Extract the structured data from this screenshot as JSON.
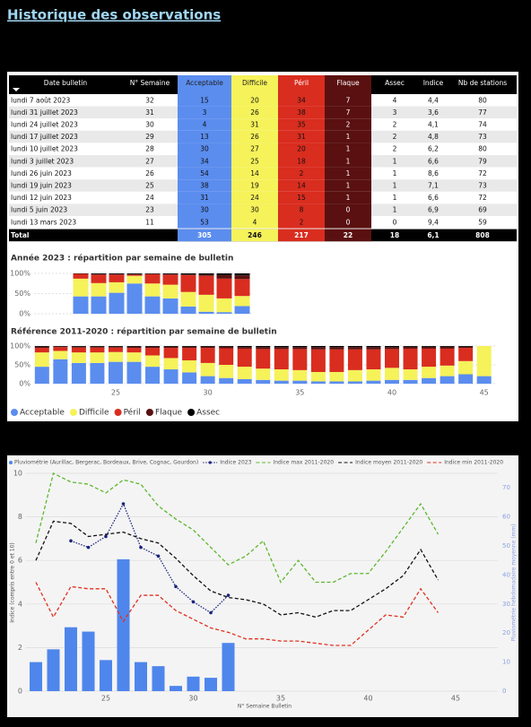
{
  "title": "Historique des observations",
  "table": {
    "columns": [
      "Date bulletin",
      "N° Semaine",
      "Acceptable",
      "Difficile",
      "Péril",
      "Flaque",
      "Assec",
      "Indice",
      "Nb de stations"
    ],
    "rows": [
      [
        "lundi 7 août 2023",
        "32",
        "15",
        "20",
        "34",
        "7",
        "4",
        "4,4",
        "80"
      ],
      [
        "lundi 31 juillet 2023",
        "31",
        "3",
        "26",
        "38",
        "7",
        "3",
        "3,6",
        "77"
      ],
      [
        "lundi 24 juillet 2023",
        "30",
        "4",
        "31",
        "35",
        "2",
        "2",
        "4,1",
        "74"
      ],
      [
        "lundi 17 juillet 2023",
        "29",
        "13",
        "26",
        "31",
        "1",
        "2",
        "4,8",
        "73"
      ],
      [
        "lundi 10 juillet 2023",
        "28",
        "30",
        "27",
        "20",
        "1",
        "2",
        "6,2",
        "80"
      ],
      [
        "lundi 3 juillet 2023",
        "27",
        "34",
        "25",
        "18",
        "1",
        "1",
        "6,6",
        "79"
      ],
      [
        "lundi 26 juin 2023",
        "26",
        "54",
        "14",
        "2",
        "1",
        "1",
        "8,6",
        "72"
      ],
      [
        "lundi 19 juin 2023",
        "25",
        "38",
        "19",
        "14",
        "1",
        "1",
        "7,1",
        "73"
      ],
      [
        "lundi 12 juin 2023",
        "24",
        "31",
        "24",
        "15",
        "1",
        "1",
        "6,6",
        "72"
      ],
      [
        "lundi 5 juin 2023",
        "23",
        "30",
        "30",
        "8",
        "0",
        "1",
        "6,9",
        "69"
      ],
      [
        "lundi 13 mars 2023",
        "11",
        "53",
        "4",
        "2",
        "0",
        "0",
        "9,4",
        "59"
      ]
    ],
    "total": [
      "Total",
      "305",
      "246",
      "217",
      "22",
      "18",
      "6,1",
      "808"
    ]
  },
  "chart_data": [
    {
      "type": "bar",
      "stacked": true,
      "title": "Année 2023 : répartition par semaine de bulletin",
      "categories": [
        null,
        null,
        null,
        null,
        null,
        null,
        null,
        null,
        null,
        null
      ],
      "series": [
        {
          "color": "#5b8def",
          "values": [
            43,
            43,
            52,
            75,
            43,
            38,
            18,
            5,
            4,
            19
          ]
        },
        {
          "color": "#f5f25a",
          "values": [
            44,
            33,
            26,
            19,
            32,
            34,
            36,
            42,
            34,
            25
          ]
        },
        {
          "color": "#d92d1f",
          "values": [
            12,
            21,
            19,
            3,
            23,
            25,
            42,
            47,
            49,
            42
          ]
        },
        {
          "color": "#5a1010",
          "values": [
            0,
            1,
            1,
            1,
            1,
            1,
            1,
            3,
            9,
            9
          ]
        },
        {
          "color": "#000000",
          "values": [
            1,
            2,
            2,
            2,
            1,
            2,
            3,
            3,
            4,
            5
          ]
        }
      ],
      "ylim": [
        0,
        100
      ],
      "yticks": [
        {
          "value": 0,
          "label": "0%"
        },
        {
          "value": 50,
          "label": "50%"
        },
        {
          "value": 100,
          "label": "100%"
        }
      ],
      "grid": true
    },
    {
      "type": "bar",
      "stacked": true,
      "title": "Référence 2011-2020 : répartition par semaine de bulletin",
      "x": [
        21,
        22,
        23,
        24,
        25,
        26,
        27,
        28,
        29,
        30,
        31,
        32,
        33,
        34,
        35,
        36,
        37,
        38,
        39,
        40,
        41,
        42,
        43,
        44,
        45
      ],
      "xlim": [
        20.4,
        45.6
      ],
      "xticks": [
        25,
        30,
        35,
        40,
        45
      ],
      "series": [
        {
          "name": "Acceptable",
          "color": "#5b8def",
          "values": [
            45,
            65,
            55,
            55,
            58,
            58,
            45,
            38,
            30,
            20,
            15,
            12,
            10,
            8,
            8,
            6,
            6,
            6,
            8,
            10,
            10,
            15,
            20,
            25,
            20
          ]
        },
        {
          "name": "Difficile",
          "color": "#f5f25a",
          "values": [
            38,
            22,
            28,
            28,
            26,
            25,
            30,
            30,
            32,
            35,
            35,
            33,
            30,
            30,
            28,
            25,
            25,
            30,
            30,
            32,
            28,
            30,
            28,
            35,
            80
          ]
        },
        {
          "name": "Péril",
          "color": "#d92d1f",
          "values": [
            12,
            10,
            13,
            13,
            12,
            12,
            20,
            27,
            33,
            40,
            44,
            48,
            52,
            54,
            56,
            60,
            60,
            55,
            53,
            50,
            55,
            48,
            45,
            35,
            0
          ]
        },
        {
          "name": "Flaque",
          "color": "#5a1010",
          "values": [
            3,
            2,
            2,
            2,
            2,
            3,
            3,
            3,
            3,
            3,
            4,
            4,
            5,
            5,
            5,
            6,
            6,
            6,
            6,
            5,
            5,
            5,
            5,
            3,
            0
          ]
        },
        {
          "name": "Assec",
          "color": "#000000",
          "values": [
            2,
            1,
            2,
            2,
            2,
            2,
            2,
            2,
            2,
            2,
            2,
            3,
            3,
            3,
            3,
            3,
            3,
            3,
            3,
            3,
            2,
            2,
            2,
            2,
            0
          ]
        }
      ],
      "ylim": [
        0,
        100
      ],
      "yticks": [
        {
          "value": 0,
          "label": "0%"
        },
        {
          "value": 50,
          "label": "50%"
        },
        {
          "value": 100,
          "label": "100%"
        }
      ],
      "grid": true,
      "legend": "bottom"
    },
    {
      "type": "combo",
      "x": [
        21,
        22,
        23,
        24,
        25,
        26,
        27,
        28,
        29,
        30,
        31,
        32,
        33,
        34,
        35,
        36,
        37,
        38,
        39,
        40,
        41,
        42,
        43,
        44
      ],
      "xlim": [
        20.4,
        47.4
      ],
      "xticks": [
        25,
        30,
        35,
        40,
        45
      ],
      "xlabel": "N° Semaine Bulletin",
      "ylabel": "Indice (compris entre 0 et 10)",
      "ylim": [
        0,
        10
      ],
      "yticks": [
        0,
        2,
        4,
        6,
        8,
        10
      ],
      "y2label": "Pluviométrie hebdomadaire moyenne (mm)",
      "y2lim": [
        0,
        75
      ],
      "y2ticks": [
        0,
        10,
        20,
        30,
        40,
        50,
        60,
        70
      ],
      "series": [
        {
          "name": "Pluviométrie (Aurillac, Bergerac, Bordeaux, Brive, Cognac, Gourdon)",
          "type": "bar",
          "axis": "y2",
          "color": "#4f86ec",
          "values": [
            10,
            14.4,
            22,
            20.5,
            10.7,
            45.4,
            10,
            8.6,
            1.8,
            5,
            4.6,
            16.6,
            null,
            null,
            null,
            null,
            null,
            null,
            null,
            null,
            null,
            null,
            null,
            null
          ]
        },
        {
          "name": "Indice 2023",
          "type": "line",
          "dash": "dotted",
          "marker": true,
          "color": "#1a237e",
          "values": [
            null,
            null,
            6.9,
            6.6,
            7.1,
            8.6,
            6.6,
            6.2,
            4.8,
            4.1,
            3.6,
            4.4,
            null,
            null,
            null,
            null,
            null,
            null,
            null,
            null,
            null,
            null,
            null,
            null
          ]
        },
        {
          "name": "Indice max 2011-2020",
          "type": "line",
          "dash": "dashed",
          "color": "#5cb82e",
          "values": [
            6.8,
            10,
            9.6,
            9.5,
            9.1,
            9.7,
            9.5,
            8.5,
            7.9,
            7.4,
            6.6,
            5.8,
            6.2,
            6.9,
            5.0,
            6.0,
            5.0,
            5.0,
            5.4,
            5.4,
            6.4,
            7.5,
            8.6,
            7.2
          ]
        },
        {
          "name": "Indice moyen 2011-2020",
          "type": "line",
          "dash": "dashed",
          "color": "#111111",
          "values": [
            6.0,
            7.8,
            7.7,
            7.1,
            7.2,
            7.3,
            7.0,
            6.8,
            6.1,
            5.3,
            4.6,
            4.3,
            4.2,
            4.0,
            3.5,
            3.6,
            3.4,
            3.7,
            3.7,
            4.2,
            4.7,
            5.3,
            6.5,
            5.1
          ]
        },
        {
          "name": "Indice min 2011-2020",
          "type": "line",
          "dash": "dashed",
          "color": "#e0301e",
          "values": [
            5.0,
            3.4,
            4.8,
            4.7,
            4.7,
            3.2,
            4.4,
            4.4,
            3.7,
            3.3,
            2.9,
            2.7,
            2.4,
            2.4,
            2.3,
            2.3,
            2.2,
            2.1,
            2.1,
            2.8,
            3.5,
            3.4,
            4.7,
            3.6
          ]
        }
      ],
      "grid": true,
      "legend": "top"
    }
  ]
}
